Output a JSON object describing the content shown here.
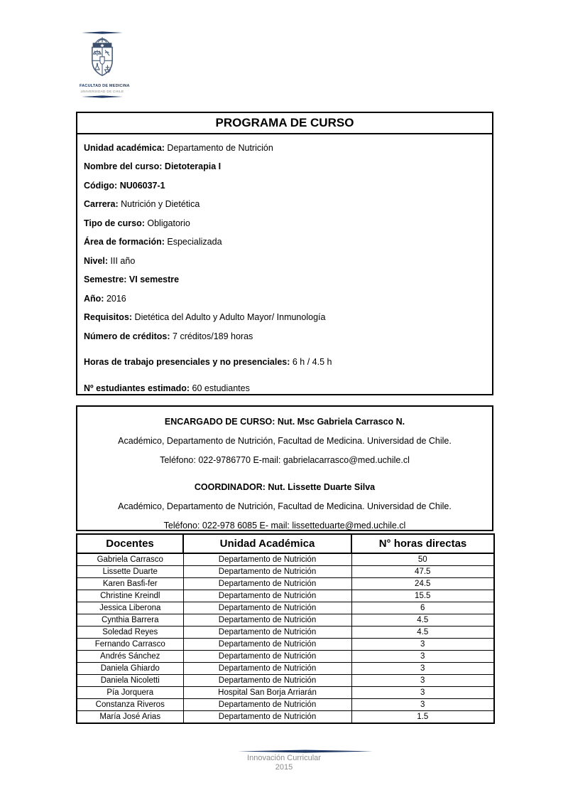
{
  "colors": {
    "accent_navy": "#1F3864",
    "crest_stroke": "#4a5c78",
    "footer_gray": "#8a8a8a"
  },
  "logo": {
    "crest_icon": "university-crest",
    "faculty": "FACULTAD DE MEDICINA",
    "university": "UNIVERSIDAD DE CHILE"
  },
  "course_box": {
    "title": "PROGRAMA DE CURSO",
    "fields": [
      {
        "label": "Unidad académica:",
        "value": "Departamento de Nutrición",
        "bold_value": false,
        "spaced": false
      },
      {
        "label": "Nombre del curso:",
        "value": "Dietoterapia I",
        "bold_value": true,
        "spaced": false
      },
      {
        "label": "Código:",
        "value": "NU06037-1",
        "bold_value": true,
        "spaced": false
      },
      {
        "label": "Carrera:",
        "value": "Nutrición y Dietética",
        "bold_value": false,
        "spaced": false
      },
      {
        "label": "Tipo de curso:",
        "value": "Obligatorio",
        "bold_value": false,
        "spaced": false
      },
      {
        "label": "Área de formación:",
        "value": "Especializada",
        "bold_value": false,
        "spaced": false
      },
      {
        "label": "Nivel:",
        "value": "III año",
        "bold_value": false,
        "spaced": false
      },
      {
        "label": "Semestre:",
        "value": "VI semestre",
        "bold_value": true,
        "spaced": false
      },
      {
        "label": "Año:",
        "value": "2016",
        "bold_value": false,
        "spaced": false
      },
      {
        "label": "Requisitos:",
        "value": "Dietética del Adulto y Adulto Mayor/ Inmunología",
        "bold_value": false,
        "spaced": false
      },
      {
        "label": "Número de créditos:",
        "value": "7 créditos/189 horas",
        "bold_value": false,
        "spaced": false
      },
      {
        "label": "Horas de trabajo presenciales y no presenciales:",
        "value": "6 h / 4.5 h",
        "bold_value": false,
        "spaced": true
      },
      {
        "label": "Nº estudiantes estimado:",
        "value": "60 estudiantes",
        "bold_value": false,
        "spaced": true
      }
    ]
  },
  "staff_box": {
    "encargado_title": "ENCARGADO DE CURSO: Nut. Msc Gabriela Carrasco N.",
    "encargado_affiliation": "Académico, Departamento de Nutrición, Facultad de Medicina. Universidad de Chile.",
    "encargado_contact": "Teléfono: 022-9786770 E-mail: gabrielacarrasco@med.uchile.cl",
    "coordinador_title": "COORDINADOR: Nut. Lissette Duarte Silva",
    "coordinador_affiliation": "Académico, Departamento de Nutrición, Facultad de Medicina. Universidad de Chile.",
    "coordinador_contact": "Teléfono: 022-978 6085  E- mail: lissetteduarte@med.uchile.cl"
  },
  "docentes_table": {
    "headers": [
      "Docentes",
      "Unidad Académica",
      "N° horas directas"
    ],
    "rows": [
      [
        "Gabriela Carrasco",
        "Departamento de Nutrición",
        "50"
      ],
      [
        "Lissette Duarte",
        "Departamento de Nutrición",
        "47.5"
      ],
      [
        "Karen Basfi-fer",
        "Departamento de Nutrición",
        "24.5"
      ],
      [
        "Christine Kreindl",
        "Departamento de Nutrición",
        "15.5"
      ],
      [
        "Jessica Liberona",
        "Departamento de Nutrición",
        "6"
      ],
      [
        "Cynthia Barrera",
        "Departamento de Nutrición",
        "4.5"
      ],
      [
        "Soledad Reyes",
        "Departamento de Nutrición",
        "4.5"
      ],
      [
        "Fernando Carrasco",
        "Departamento de Nutrición",
        "3"
      ],
      [
        "Andrés Sánchez",
        "Departamento de Nutrición",
        "3"
      ],
      [
        "Daniela Ghiardo",
        "Departamento de Nutrición",
        "3"
      ],
      [
        "Daniela Nicoletti",
        "Departamento de Nutrición",
        "3"
      ],
      [
        "Pía Jorquera",
        "Hospital San Borja Arriarán",
        "3"
      ],
      [
        "Constanza Riveros",
        "Departamento de Nutrición",
        "3"
      ],
      [
        "María José Arias",
        "Departamento de Nutrición",
        "1.5"
      ]
    ]
  },
  "footer": {
    "program": "Innovación Curricular",
    "year": "2015"
  }
}
